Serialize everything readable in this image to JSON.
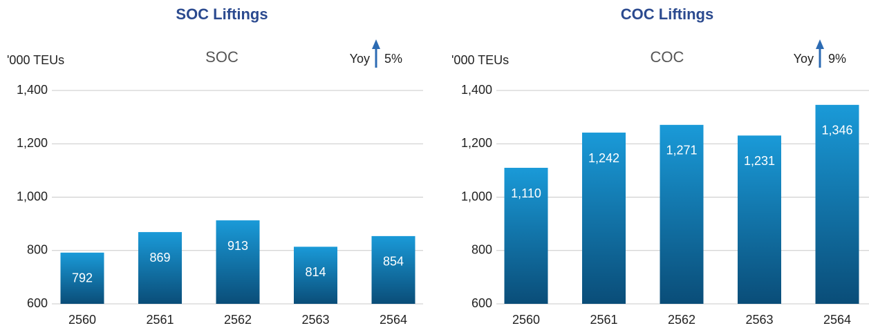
{
  "chart_data": [
    {
      "type": "bar",
      "title": "SOC Liftings",
      "subtitle": "SOC",
      "y_label": "'000 TEUs",
      "yoy": "Yoy",
      "yoy_value": "5%",
      "categories": [
        "2560",
        "2561",
        "2562",
        "2563",
        "2564"
      ],
      "values": [
        792,
        869,
        913,
        814,
        854
      ],
      "ylim": [
        600,
        1400
      ],
      "yticks": [
        600,
        800,
        {
          "value": 1000,
          "label": "1,000"
        },
        {
          "value": 1200,
          "label": "1,200"
        },
        {
          "value": 1400,
          "label": "1,400"
        }
      ],
      "grid": true,
      "color": [
        "#1a9ad8",
        "#0a4d78"
      ]
    },
    {
      "type": "bar",
      "title": "COC Liftings",
      "subtitle": "COC",
      "y_label": "'000 TEUs",
      "yoy": "Yoy",
      "yoy_value": "9%",
      "categories": [
        "2560",
        "2561",
        "2562",
        "2563",
        "2564"
      ],
      "values": [
        1110,
        1242,
        1271,
        1231,
        1346
      ],
      "value_labels": [
        "1,110",
        "1,242",
        "1,271",
        "1,231",
        "1,346"
      ],
      "ylim": [
        600,
        1400
      ],
      "yticks": [
        600,
        800,
        {
          "value": 1000,
          "label": "1,000"
        },
        {
          "value": 1200,
          "label": "1,200"
        },
        {
          "value": 1400,
          "label": "1,400"
        }
      ],
      "grid": true,
      "color": [
        "#1a9ad8",
        "#0a4d78"
      ]
    }
  ]
}
